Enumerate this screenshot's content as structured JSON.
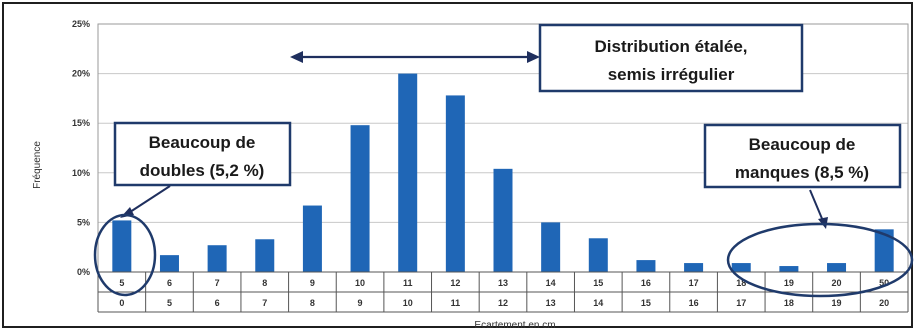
{
  "chart_data": {
    "type": "bar",
    "ylabel": "Fréquence",
    "xlabel": "Ecartement en cm",
    "y_ticks": [
      "0%",
      "5%",
      "10%",
      "15%",
      "20%",
      "25%"
    ],
    "ylim": [
      0,
      25
    ],
    "x_tick_row1": [
      "5",
      "6",
      "7",
      "8",
      "9",
      "10",
      "11",
      "12",
      "13",
      "14",
      "15",
      "16",
      "17",
      "18",
      "19",
      "20",
      "50"
    ],
    "x_tick_row2": [
      "0",
      "5",
      "6",
      "7",
      "8",
      "9",
      "10",
      "11",
      "12",
      "13",
      "14",
      "15",
      "16",
      "17",
      "18",
      "19",
      "20"
    ],
    "values": [
      5.2,
      1.7,
      2.7,
      3.3,
      6.7,
      14.8,
      20.0,
      17.8,
      10.4,
      5.0,
      3.4,
      1.2,
      0.9,
      0.9,
      0.6,
      0.9,
      4.3
    ],
    "bar_color": "#1f66b6",
    "grid": true
  },
  "annotations": {
    "distribution_line1": "Distribution étalée,",
    "distribution_line2": "semis irrégulier",
    "doubles_line1": "Beaucoup de",
    "doubles_line2": "doubles (5,2 %)",
    "manques_line1": "Beaucoup de",
    "manques_line2": "manques (8,5 %)"
  },
  "colors": {
    "callout_border": "#1f3a6b",
    "arrow": "#1f2f5e",
    "grid": "#c8c8c8"
  }
}
